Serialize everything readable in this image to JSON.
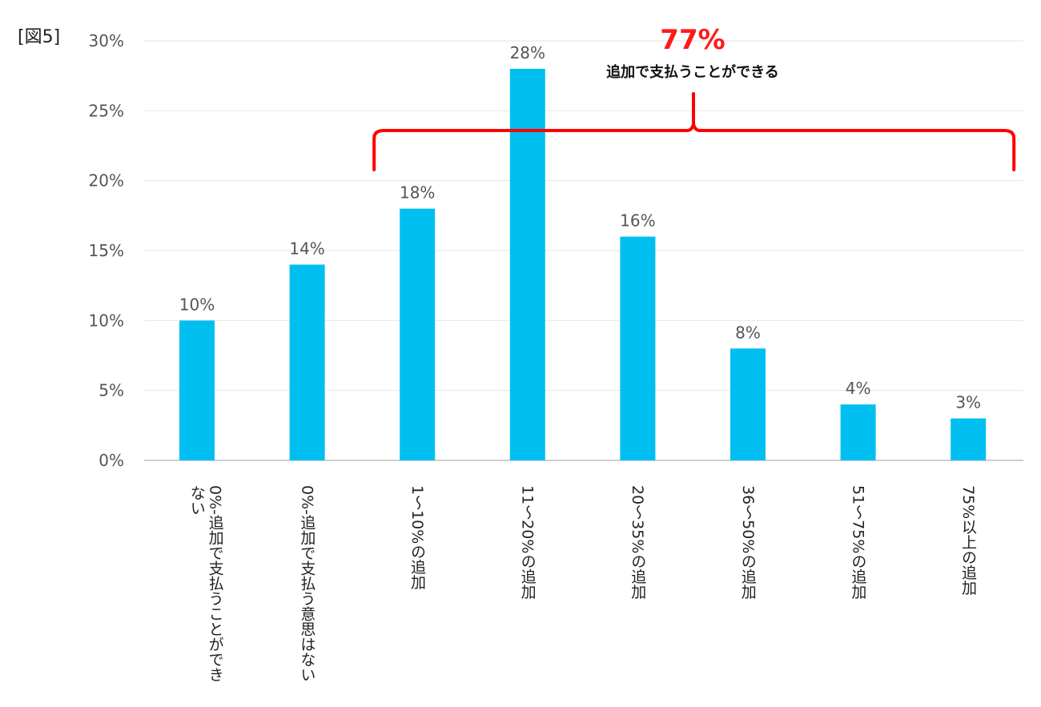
{
  "figure_label": "[図5]",
  "chart_data": {
    "type": "bar",
    "categories": [
      "0%‐追加で支払うことができない",
      "0%‐追加で支払う意思はない",
      "1～10%の追加",
      "11～20%の追加",
      "20～35%の追加",
      "36～50%の追加",
      "51～75%の追加",
      "75%以上の追加"
    ],
    "values": [
      10,
      14,
      18,
      28,
      16,
      8,
      4,
      3
    ],
    "data_labels": [
      "10%",
      "14%",
      "18%",
      "28%",
      "16%",
      "8%",
      "4%",
      "3%"
    ],
    "ylim": [
      0,
      30
    ],
    "yticks": [
      0,
      5,
      10,
      15,
      20,
      25,
      30
    ],
    "ytick_labels": [
      "0%",
      "5%",
      "10%",
      "15%",
      "20%",
      "25%",
      "30%"
    ],
    "grid": true,
    "bar_color": "#00bff0",
    "annotation": {
      "value": "77%",
      "text": "追加で支払うことができる",
      "color": "#ff0000",
      "spans_categories": [
        2,
        7
      ]
    }
  }
}
